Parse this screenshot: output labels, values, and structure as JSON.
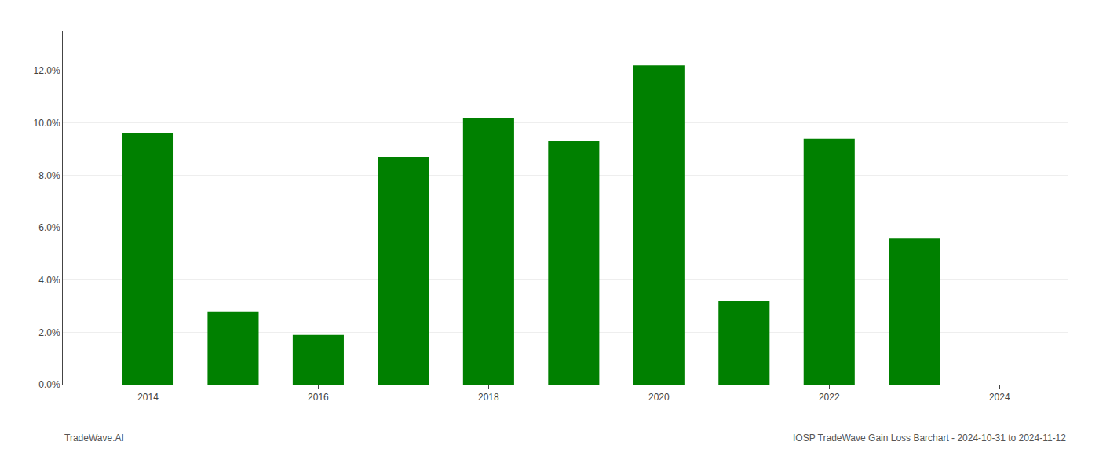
{
  "chart_data": {
    "type": "bar",
    "x": [
      2014,
      2015,
      2016,
      2017,
      2018,
      2019,
      2020,
      2021,
      2022,
      2023
    ],
    "values": [
      0.096,
      0.028,
      0.019,
      0.087,
      0.102,
      0.093,
      0.122,
      0.032,
      0.094,
      0.056
    ],
    "color": "#008000",
    "xlim": [
      2013.0,
      2024.8
    ],
    "xticks": [
      2014,
      2016,
      2018,
      2020,
      2022,
      2024
    ],
    "ylim": [
      0,
      0.135
    ],
    "yticks": [
      {
        "value": 0.0,
        "label": "0.0%"
      },
      {
        "value": 0.02,
        "label": "2.0%"
      },
      {
        "value": 0.04,
        "label": "4.0%"
      },
      {
        "value": 0.06,
        "label": "6.0%"
      },
      {
        "value": 0.08,
        "label": "8.0%"
      },
      {
        "value": 0.1,
        "label": "10.0%"
      },
      {
        "value": 0.12,
        "label": "12.0%"
      }
    ],
    "grid": true,
    "annotations": [
      "TradeWave.AI",
      "IOSP TradeWave Gain Loss Barchart - 2024-10-31 to 2024-11-12"
    ]
  }
}
